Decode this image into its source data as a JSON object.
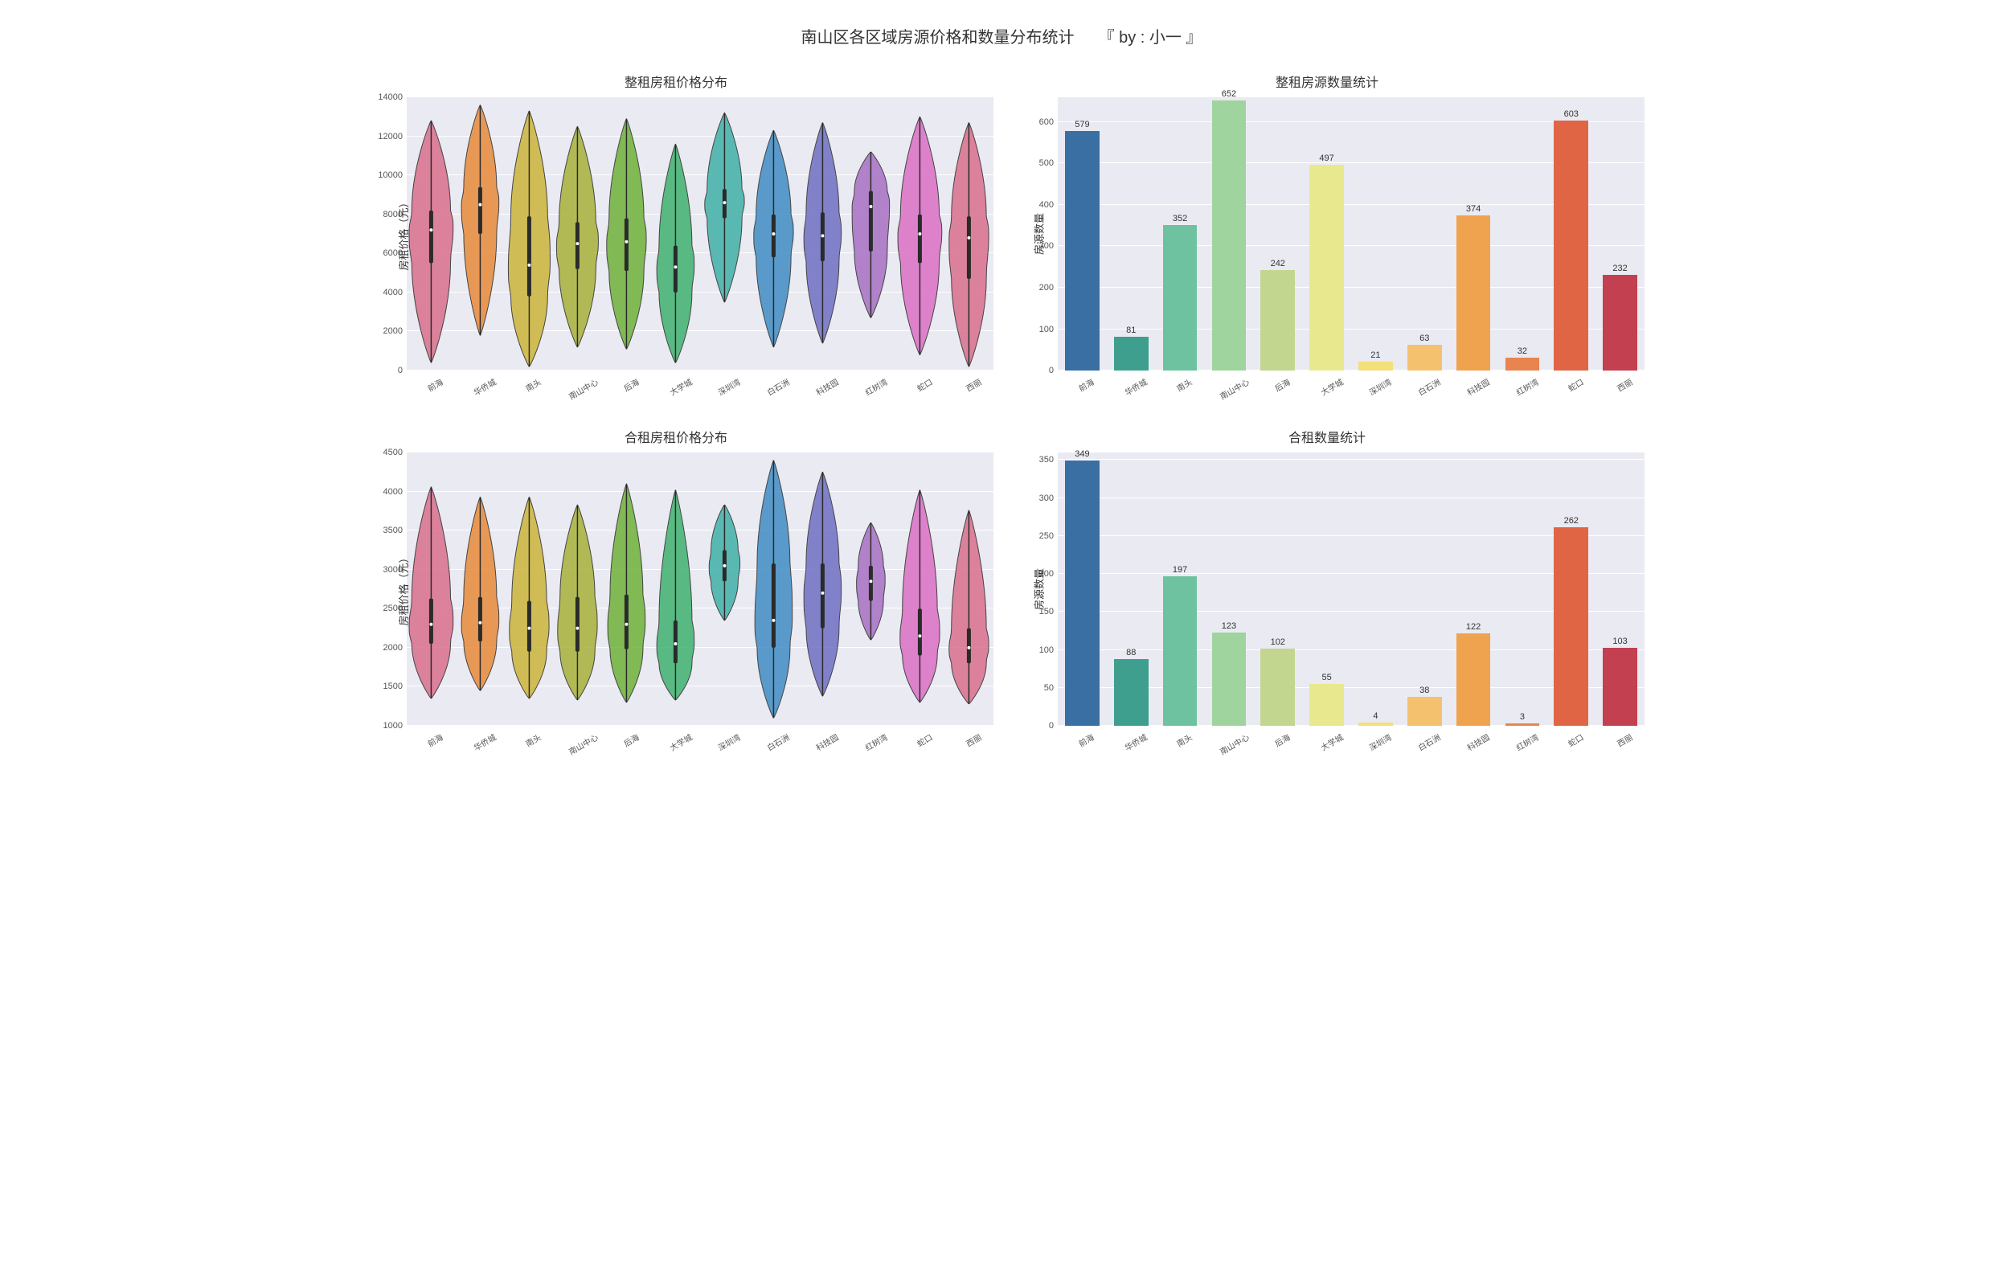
{
  "main_title": "南山区各区域房源价格和数量分布统计　　『 by : 小一 』",
  "categories": [
    "前海",
    "华侨城",
    "南头",
    "南山中心",
    "后海",
    "大学城",
    "深圳湾",
    "白石洲",
    "科技园",
    "红树湾",
    "蛇口",
    "西丽"
  ],
  "colors": [
    "#d96f8c",
    "#e88a3a",
    "#cbb43a",
    "#a7b03a",
    "#6fb03a",
    "#3fb06f",
    "#3fb0a7",
    "#3f8cc3",
    "#6f6fc3",
    "#a76fc3",
    "#d96fc3",
    "#d96f8c"
  ],
  "bar_colors": [
    "#3a6fa3",
    "#3f9f8f",
    "#6fc29f",
    "#9fd49f",
    "#c3d68f",
    "#e8e88f",
    "#f4e07a",
    "#f4c26f",
    "#f0a34f",
    "#e8844f",
    "#e06545",
    "#c34050"
  ],
  "background": "#eaeaf2",
  "gridline_color": "#ffffff",
  "text_color": "#333333",
  "panels": {
    "violin_top": {
      "title": "整租房租价格分布",
      "ylabel": "房租价格（元）",
      "ylim": [
        0,
        14000
      ],
      "ytick_step": 2000,
      "violins": [
        {
          "min": 400,
          "q1": 5500,
          "median": 7200,
          "q3": 8200,
          "max": 12800,
          "width": 1.0
        },
        {
          "min": 1800,
          "q1": 7000,
          "median": 8500,
          "q3": 9400,
          "max": 13600,
          "width": 0.85
        },
        {
          "min": 200,
          "q1": 3800,
          "median": 5400,
          "q3": 7900,
          "max": 13300,
          "width": 0.95
        },
        {
          "min": 1200,
          "q1": 5200,
          "median": 6500,
          "q3": 7600,
          "max": 12500,
          "width": 0.95
        },
        {
          "min": 1100,
          "q1": 5100,
          "median": 6600,
          "q3": 7800,
          "max": 12900,
          "width": 0.9
        },
        {
          "min": 400,
          "q1": 4000,
          "median": 5300,
          "q3": 6400,
          "max": 11600,
          "width": 0.85
        },
        {
          "min": 3500,
          "q1": 7800,
          "median": 8600,
          "q3": 9300,
          "max": 13200,
          "width": 0.9
        },
        {
          "min": 1200,
          "q1": 5800,
          "median": 7000,
          "q3": 8000,
          "max": 12300,
          "width": 0.9
        },
        {
          "min": 1400,
          "q1": 5600,
          "median": 6900,
          "q3": 8100,
          "max": 12700,
          "width": 0.85
        },
        {
          "min": 2700,
          "q1": 6100,
          "median": 8400,
          "q3": 9200,
          "max": 11200,
          "width": 0.85
        },
        {
          "min": 800,
          "q1": 5500,
          "median": 7000,
          "q3": 8000,
          "max": 13000,
          "width": 1.0
        },
        {
          "min": 200,
          "q1": 4700,
          "median": 6800,
          "q3": 7900,
          "max": 12700,
          "width": 0.9
        }
      ]
    },
    "violin_bottom": {
      "title": "合租房租价格分布",
      "ylabel": "房租价格（元）",
      "ylim": [
        1000,
        4500
      ],
      "ytick_step": 500,
      "violins": [
        {
          "min": 1350,
          "q1": 2050,
          "median": 2300,
          "q3": 2630,
          "max": 4060,
          "width": 1.0
        },
        {
          "min": 1450,
          "q1": 2080,
          "median": 2320,
          "q3": 2650,
          "max": 3930,
          "width": 0.85
        },
        {
          "min": 1350,
          "q1": 1950,
          "median": 2250,
          "q3": 2600,
          "max": 3930,
          "width": 0.9
        },
        {
          "min": 1330,
          "q1": 1950,
          "median": 2250,
          "q3": 2650,
          "max": 3830,
          "width": 0.9
        },
        {
          "min": 1300,
          "q1": 1980,
          "median": 2300,
          "q3": 2680,
          "max": 4100,
          "width": 0.85
        },
        {
          "min": 1330,
          "q1": 1800,
          "median": 2050,
          "q3": 2350,
          "max": 4020,
          "width": 0.85
        },
        {
          "min": 2350,
          "q1": 2850,
          "median": 3050,
          "q3": 3250,
          "max": 3830,
          "width": 0.7
        },
        {
          "min": 1100,
          "q1": 2000,
          "median": 2350,
          "q3": 3080,
          "max": 4400,
          "width": 0.85
        },
        {
          "min": 1380,
          "q1": 2250,
          "median": 2700,
          "q3": 3080,
          "max": 4250,
          "width": 0.85
        },
        {
          "min": 2100,
          "q1": 2600,
          "median": 2850,
          "q3": 3050,
          "max": 3600,
          "width": 0.65
        },
        {
          "min": 1300,
          "q1": 1900,
          "median": 2150,
          "q3": 2500,
          "max": 4020,
          "width": 0.9
        },
        {
          "min": 1280,
          "q1": 1800,
          "median": 2000,
          "q3": 2250,
          "max": 3760,
          "width": 0.9
        }
      ]
    },
    "bar_top": {
      "title": "整租房源数量统计",
      "ylabel": "房源数量",
      "ylim": [
        0,
        660
      ],
      "ytick_step": 100,
      "values": [
        579,
        81,
        352,
        652,
        242,
        497,
        21,
        63,
        374,
        32,
        603,
        232
      ]
    },
    "bar_bottom": {
      "title": "合租数量统计",
      "ylabel": "房源数量",
      "ylim": [
        0,
        360
      ],
      "ytick_step": 50,
      "values": [
        349,
        88,
        197,
        123,
        102,
        55,
        4,
        38,
        122,
        3,
        262,
        103
      ]
    }
  }
}
